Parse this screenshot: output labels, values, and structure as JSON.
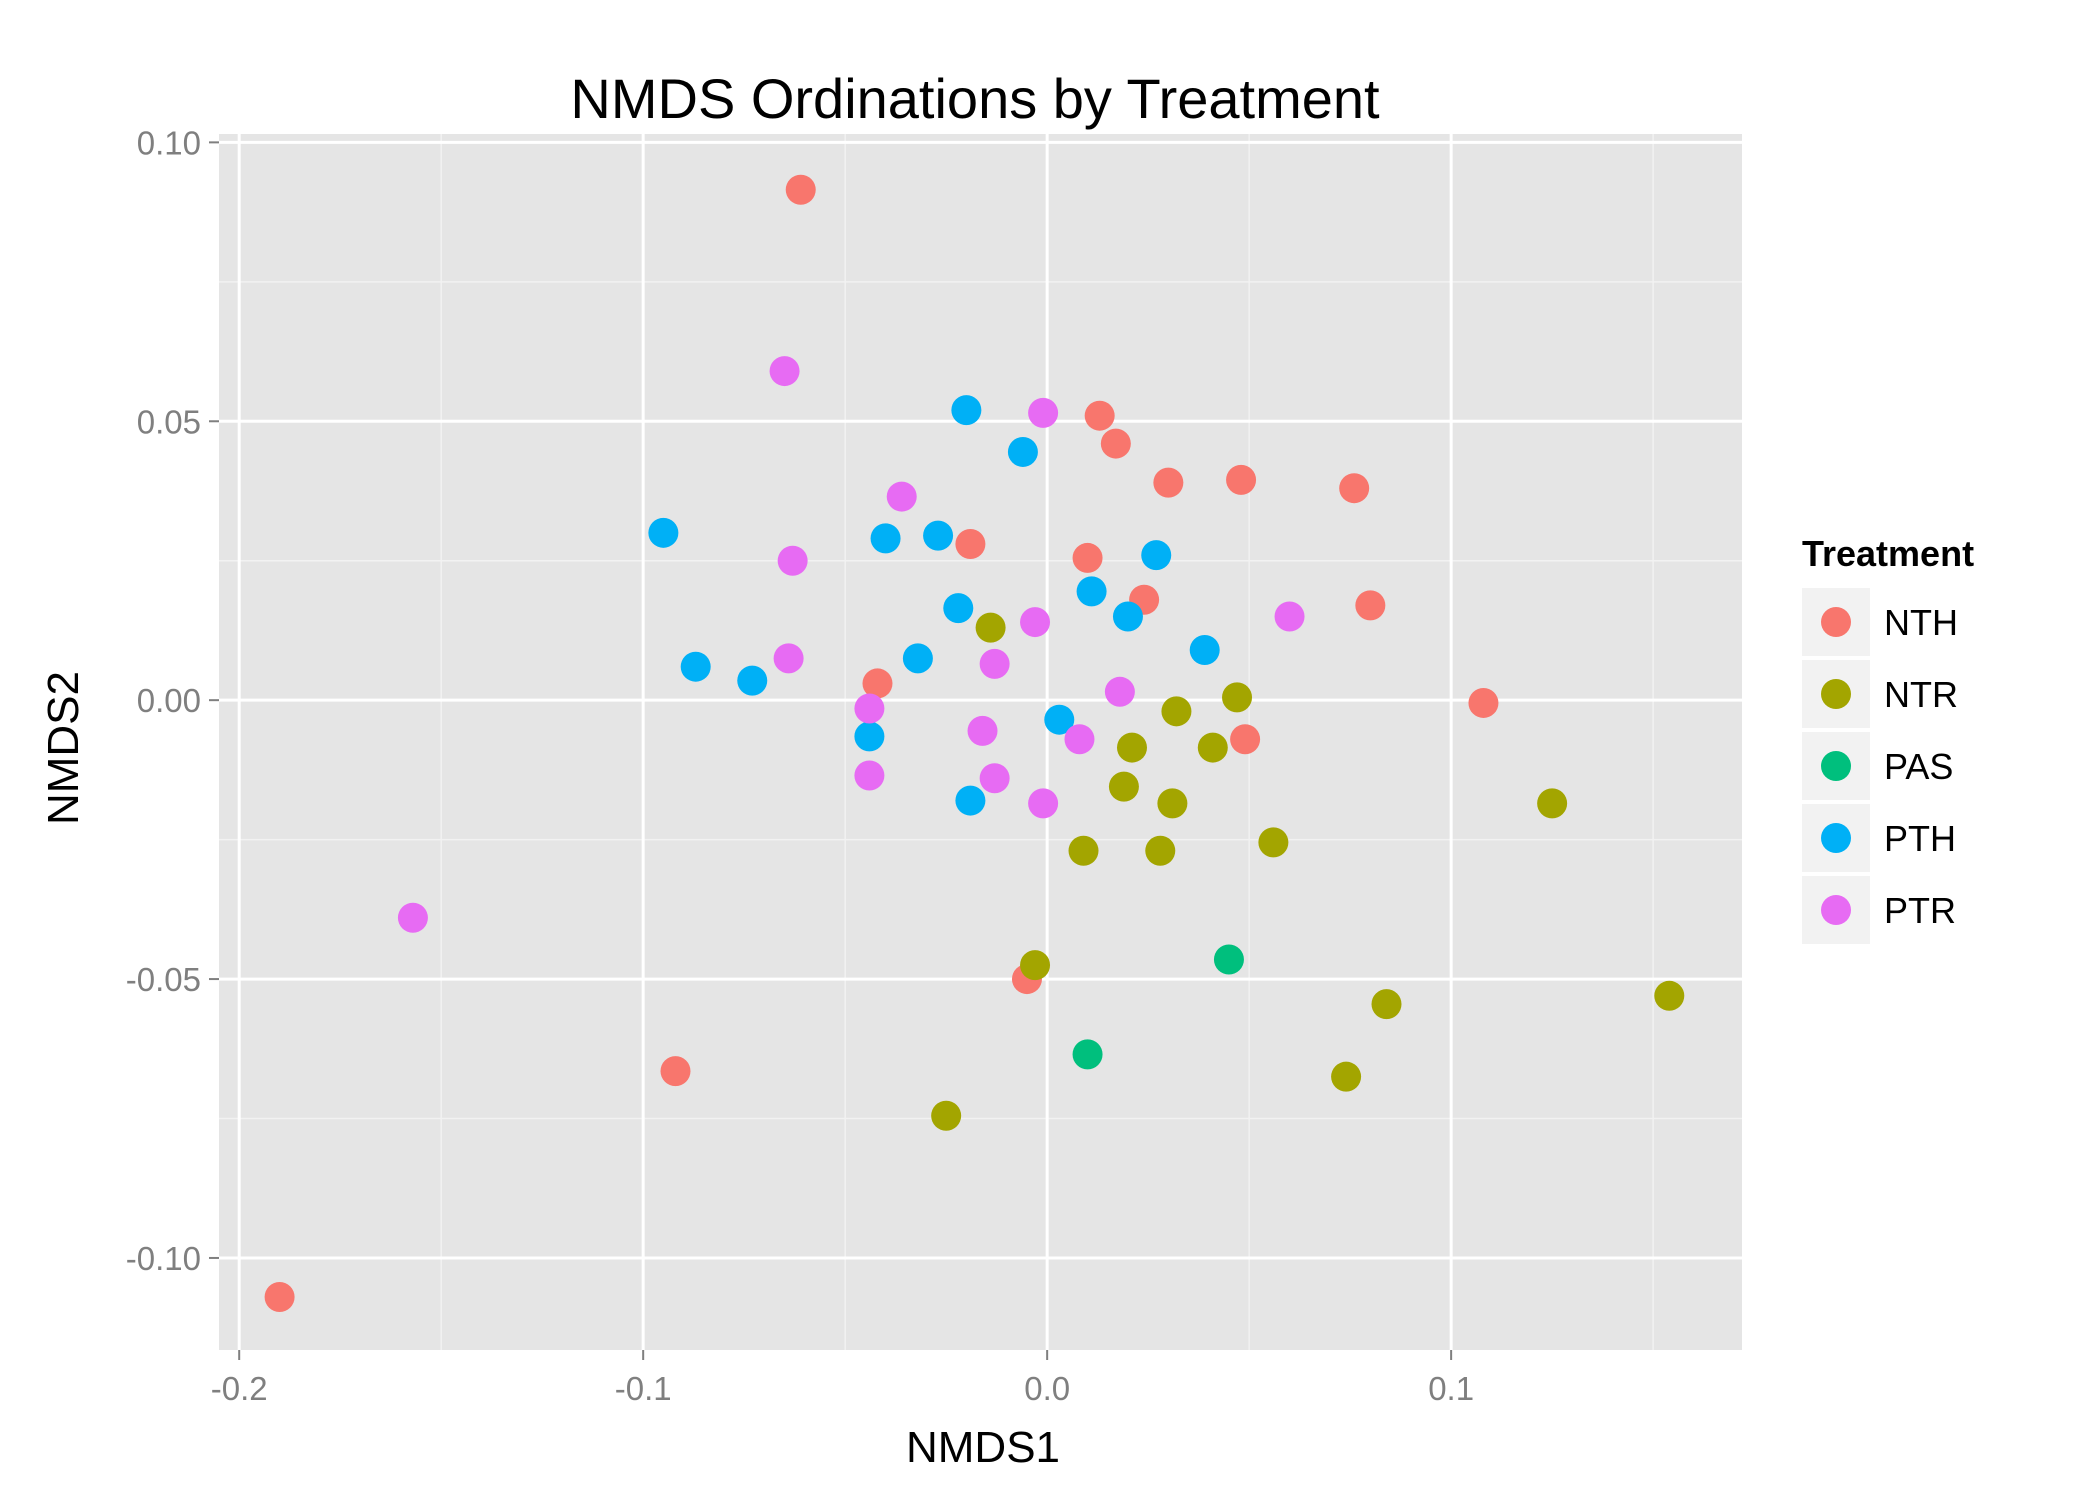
{
  "chart_data": {
    "type": "scatter",
    "title": "NMDS Ordinations by Treatment",
    "xlabel": "NMDS1",
    "ylabel": "NMDS2",
    "xlim": [
      -0.205,
      0.172
    ],
    "ylim": [
      -0.1165,
      0.1015
    ],
    "x_ticks": [
      -0.2,
      -0.1,
      0.0,
      0.1
    ],
    "x_tick_labels": [
      "-0.2",
      "-0.1",
      "0.0",
      "0.1"
    ],
    "y_ticks": [
      -0.1,
      -0.05,
      0.0,
      0.05,
      0.1
    ],
    "y_tick_labels": [
      "-0.10",
      "-0.05",
      "0.00",
      "0.05",
      "0.10"
    ],
    "grid": true,
    "panel_background": "#e5e5e5",
    "legend_title": "Treatment",
    "legend_position": "right",
    "series": [
      {
        "name": "NTH",
        "color": "#F8766D",
        "points": [
          [
            -0.061,
            0.0915
          ],
          [
            0.013,
            0.051
          ],
          [
            0.017,
            0.046
          ],
          [
            0.03,
            0.039
          ],
          [
            0.048,
            0.0395
          ],
          [
            0.076,
            0.038
          ],
          [
            -0.019,
            0.028
          ],
          [
            0.01,
            0.0255
          ],
          [
            0.024,
            0.018
          ],
          [
            0.08,
            0.017
          ],
          [
            -0.042,
            0.003
          ],
          [
            0.049,
            -0.007
          ],
          [
            0.108,
            -0.0005
          ],
          [
            -0.005,
            -0.05
          ],
          [
            -0.092,
            -0.0665
          ],
          [
            -0.19,
            -0.107
          ]
        ]
      },
      {
        "name": "NTR",
        "color": "#A3A500",
        "points": [
          [
            -0.014,
            0.013
          ],
          [
            0.032,
            -0.002
          ],
          [
            0.047,
            0.0005
          ],
          [
            0.021,
            -0.0085
          ],
          [
            0.041,
            -0.0085
          ],
          [
            0.019,
            -0.0155
          ],
          [
            0.031,
            -0.0185
          ],
          [
            0.125,
            -0.0185
          ],
          [
            0.009,
            -0.027
          ],
          [
            0.028,
            -0.027
          ],
          [
            0.056,
            -0.0255
          ],
          [
            -0.003,
            -0.0475
          ],
          [
            0.084,
            -0.0545
          ],
          [
            0.154,
            -0.053
          ],
          [
            0.074,
            -0.0675
          ],
          [
            -0.025,
            -0.0745
          ]
        ]
      },
      {
        "name": "PAS",
        "color": "#00BF7D",
        "points": [
          [
            0.045,
            -0.0465
          ],
          [
            0.01,
            -0.0635
          ]
        ]
      },
      {
        "name": "PTH",
        "color": "#00B0F6",
        "points": [
          [
            -0.02,
            0.052
          ],
          [
            -0.006,
            0.0445
          ],
          [
            -0.095,
            0.03
          ],
          [
            -0.04,
            0.029
          ],
          [
            -0.027,
            0.0295
          ],
          [
            0.027,
            0.026
          ],
          [
            0.011,
            0.0195
          ],
          [
            -0.022,
            0.0165
          ],
          [
            0.02,
            0.015
          ],
          [
            0.039,
            0.009
          ],
          [
            -0.032,
            0.0075
          ],
          [
            -0.087,
            0.006
          ],
          [
            -0.073,
            0.0035
          ],
          [
            0.003,
            -0.0035
          ],
          [
            -0.044,
            -0.0065
          ],
          [
            -0.019,
            -0.018
          ]
        ]
      },
      {
        "name": "PTR",
        "color": "#E76BF3",
        "points": [
          [
            -0.065,
            0.059
          ],
          [
            -0.001,
            0.0515
          ],
          [
            -0.036,
            0.0365
          ],
          [
            -0.063,
            0.025
          ],
          [
            -0.003,
            0.014
          ],
          [
            0.06,
            0.015
          ],
          [
            -0.064,
            0.0075
          ],
          [
            -0.013,
            0.0065
          ],
          [
            0.018,
            0.0015
          ],
          [
            -0.044,
            -0.0015
          ],
          [
            -0.016,
            -0.0055
          ],
          [
            0.008,
            -0.007
          ],
          [
            -0.044,
            -0.0135
          ],
          [
            -0.013,
            -0.014
          ],
          [
            -0.001,
            -0.0185
          ],
          [
            -0.157,
            -0.039
          ]
        ]
      }
    ]
  }
}
